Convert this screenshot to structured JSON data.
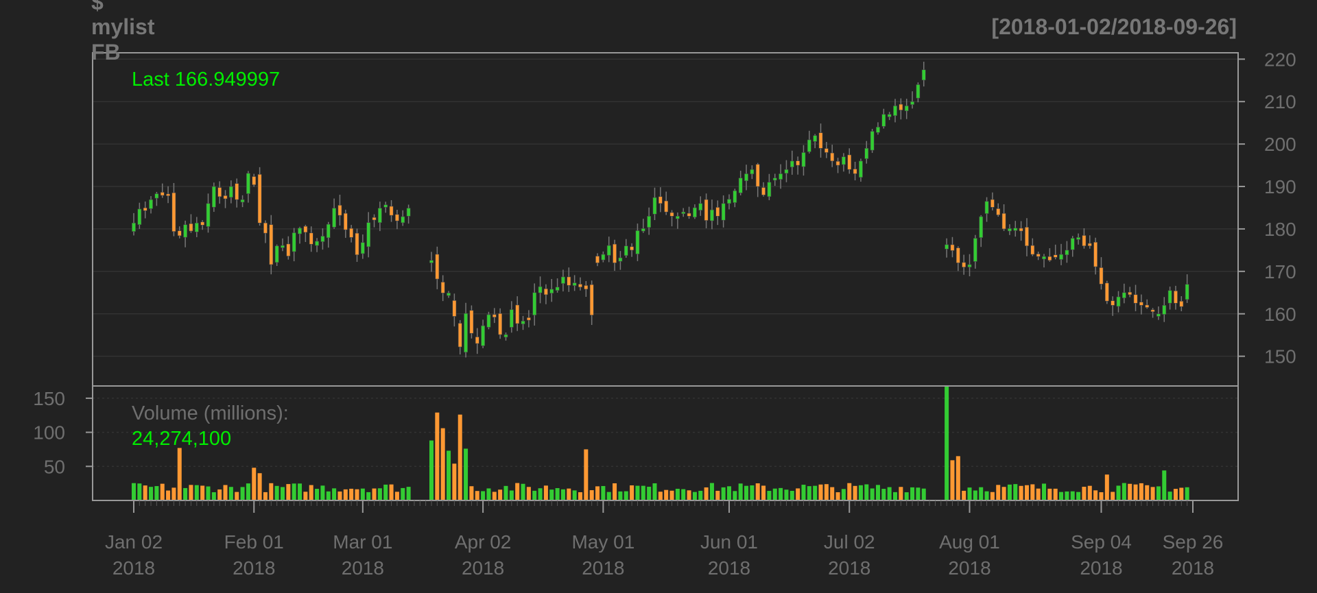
{
  "header": {
    "symbol_line1": "$",
    "symbol_line2": "mylist",
    "symbol_line3": "FB",
    "date_range": "[2018-01-02/2018-09-26]"
  },
  "legend": {
    "last_label": "Last 166.949997",
    "volume_label": "Volume (millions):",
    "volume_value": "24,274,100"
  },
  "colors": {
    "background": "#222222",
    "up": "#33cc33",
    "down": "#ff9933",
    "frame": "#999999",
    "grid": "#333333",
    "text": "#6f6f6f",
    "legend_green": "#00ee00"
  },
  "chart_data": {
    "type": "candlestick",
    "price_axis": {
      "ticks": [
        "150",
        "160",
        "170",
        "180",
        "190",
        "200",
        "210",
        "220"
      ],
      "range": [
        143,
        221.5
      ]
    },
    "volume_axis": {
      "ticks": [
        "50",
        "100",
        "150"
      ],
      "range": [
        0,
        168
      ]
    },
    "x_axis": {
      "labels": [
        {
          "date": "2018-01-02",
          "l1": "Jan 02",
          "l2": "2018"
        },
        {
          "date": "2018-02-01",
          "l1": "Feb 01",
          "l2": "2018"
        },
        {
          "date": "2018-03-01",
          "l1": "Mar 01",
          "l2": "2018"
        },
        {
          "date": "2018-04-02",
          "l1": "Apr 02",
          "l2": "2018"
        },
        {
          "date": "2018-05-01",
          "l1": "May 01",
          "l2": "2018"
        },
        {
          "date": "2018-06-01",
          "l1": "Jun 01",
          "l2": "2018"
        },
        {
          "date": "2018-07-02",
          "l1": "Jul 02",
          "l2": "2018"
        },
        {
          "date": "2018-08-01",
          "l1": "Aug 01",
          "l2": "2018"
        },
        {
          "date": "2018-09-04",
          "l1": "Sep 04",
          "l2": "2018"
        },
        {
          "date": "2018-09-26",
          "l1": "Sep 26",
          "l2": "2018"
        }
      ]
    },
    "last_close": 166.949997,
    "last_volume": 24274100,
    "segments": [
      {
        "start": "2018-01-02",
        "closes": [
          181.4,
          184.7,
          184.3,
          186.9,
          188.3,
          187.9,
          187.8,
          179.4,
          178.4,
          181.0,
          179.5,
          181.4,
          180.9,
          186.0,
          190.0,
          187.6,
          187.1,
          190.0,
          186.9,
          186.9,
          193.1,
          190.4,
          181.4,
          179.0,
          171.6,
          176.0,
          176.1,
          173.6,
          179.1,
          180.2,
          179.2,
          176.4,
          177.1,
          178.3,
          181.1,
          184.9,
          183.2,
          179.8,
          178.0,
          173.9,
          176.8,
          181.5,
          182.1,
          184.9,
          185.7,
          183.2,
          181.9,
          182.9,
          184.9
        ]
      },
      {
        "start": "2018-03-19",
        "closes": [
          172.6,
          168.2,
          164.9,
          164.9,
          159.4,
          152.2,
          160.1,
          155.4,
          153.0,
          157.2,
          159.8,
          159.2,
          155.1,
          155.1,
          161.0,
          157.7,
          158.3,
          158.5,
          165.0,
          166.4,
          164.5,
          165.8,
          166.3,
          168.7,
          166.7,
          167.3,
          166.3,
          165.8,
          159.7,
          159.7
        ]
      },
      {
        "start": "2018-04-30",
        "closes": [
          172.0,
          174.0,
          176.1,
          172.0,
          173.2,
          176.0,
          175.0,
          179.6,
          180.1,
          183.0,
          187.4,
          186.0,
          184.0,
          183.0,
          183.0,
          184.0,
          183.0,
          185.0,
          186.0,
          182.0,
          184.5,
          183.0,
          186.0,
          187.0,
          189.0,
          192.0,
          193.0,
          194.0,
          190.0,
          188.0,
          191.0,
          192.0,
          193.0,
          194.0,
          196.0,
          195.0,
          198.0,
          201.0,
          202.0,
          199.0,
          198.0,
          196.0,
          195.0,
          197.0,
          194.0,
          193.0,
          196.0,
          199.0,
          203.0,
          204.0,
          207.0,
          207.0,
          209.0,
          208.0,
          209.0,
          210.0,
          214.0,
          217.5
        ]
      },
      {
        "start": "2018-07-26",
        "closes": [
          176.3,
          174.9,
          172.0,
          171.0,
          171.6,
          177.8,
          182.9,
          186.5,
          185.1,
          183.3,
          180.0,
          180.1,
          180.2,
          179.5,
          176.0,
          174.0,
          173.5,
          173.5,
          172.6,
          173.3,
          174.0,
          175.0,
          177.8,
          178.0,
          176.0,
          176.0,
          171.1,
          167.0,
          163.0,
          162.0,
          164.0,
          165.0,
          164.5,
          162.5,
          162.0,
          161.5,
          160.5,
          160.0,
          162.0,
          165.5,
          162.5,
          161.7,
          166.95
        ]
      }
    ],
    "volume_spikes": [
      {
        "date": "2018-01-12",
        "value": 77
      },
      {
        "date": "2018-02-01",
        "value": 48
      },
      {
        "date": "2018-02-02",
        "value": 40
      },
      {
        "date": "2018-03-19",
        "value": 88
      },
      {
        "date": "2018-03-20",
        "value": 129
      },
      {
        "date": "2018-03-21",
        "value": 106
      },
      {
        "date": "2018-03-22",
        "value": 73
      },
      {
        "date": "2018-03-23",
        "value": 54
      },
      {
        "date": "2018-03-26",
        "value": 126
      },
      {
        "date": "2018-03-27",
        "value": 76
      },
      {
        "date": "2018-04-26",
        "value": 75
      },
      {
        "date": "2018-07-25",
        "value": 58
      },
      {
        "date": "2018-07-26",
        "value": 169
      },
      {
        "date": "2018-07-27",
        "value": 59
      },
      {
        "date": "2018-07-30",
        "value": 65
      },
      {
        "date": "2018-09-05",
        "value": 38
      },
      {
        "date": "2018-09-19",
        "value": 44
      }
    ]
  }
}
